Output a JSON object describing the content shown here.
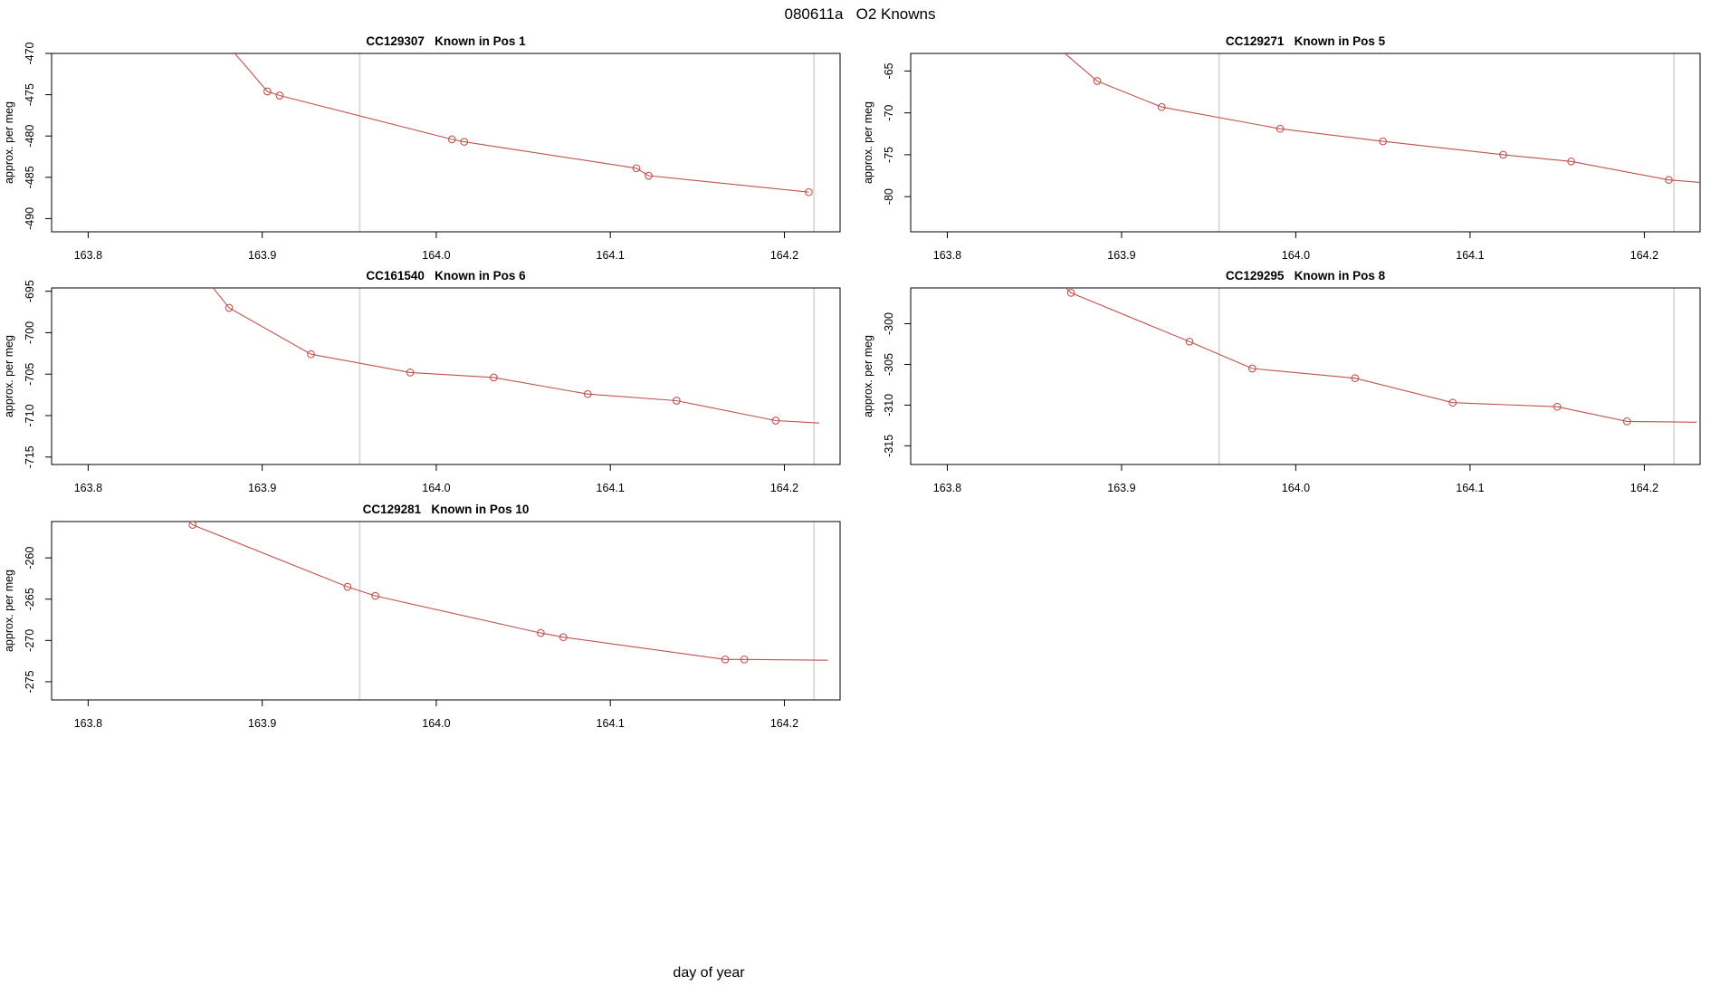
{
  "page": {
    "main_title": "080611a   O2 Knowns",
    "shared_xlabel": "day of year"
  },
  "colors": {
    "series": "#c0524c",
    "vline": "#dcdcdc",
    "axis": "#000000",
    "background": "#ffffff"
  },
  "chart_data": [
    {
      "type": "line",
      "id": "CC129307",
      "title": "CC129307   Known in Pos 1",
      "known_position": 1,
      "ylabel": "approx. per meg",
      "grid": {
        "row": 0,
        "col": 0
      },
      "xlim": [
        163.779,
        164.232
      ],
      "ylim": [
        -491.6,
        -470.0
      ],
      "xticks": [
        163.8,
        163.9,
        164.0,
        164.1,
        164.2
      ],
      "yticks": [
        -470,
        -475,
        -480,
        -485,
        -490
      ],
      "vlines": [
        163.956,
        164.217
      ],
      "line": [
        [
          163.868,
          -466.0
        ],
        [
          163.903,
          -474.6
        ],
        [
          163.91,
          -475.1
        ],
        [
          164.009,
          -480.4
        ],
        [
          164.016,
          -480.7
        ],
        [
          164.115,
          -483.9
        ],
        [
          164.122,
          -484.8
        ],
        [
          164.214,
          -486.8
        ]
      ],
      "markers": [
        [
          163.903,
          -474.6
        ],
        [
          163.91,
          -475.1
        ],
        [
          164.009,
          -480.4
        ],
        [
          164.016,
          -480.7
        ],
        [
          164.115,
          -483.9
        ],
        [
          164.122,
          -484.8
        ],
        [
          164.214,
          -486.8
        ]
      ]
    },
    {
      "type": "line",
      "id": "CC129271",
      "title": "CC129271   Known in Pos 5",
      "known_position": 5,
      "ylabel": "approx. per meg",
      "grid": {
        "row": 0,
        "col": 1
      },
      "xlim": [
        163.779,
        164.232
      ],
      "ylim": [
        -84.2,
        -62.9
      ],
      "xticks": [
        163.8,
        163.9,
        164.0,
        164.1,
        164.2
      ],
      "yticks": [
        -65,
        -70,
        -75,
        -80
      ],
      "vlines": [
        163.956,
        164.217
      ],
      "line": [
        [
          163.84,
          -58.0
        ],
        [
          163.886,
          -66.2
        ],
        [
          163.923,
          -69.3
        ],
        [
          163.991,
          -71.9
        ],
        [
          164.05,
          -73.4
        ],
        [
          164.119,
          -75.0
        ],
        [
          164.158,
          -75.8
        ],
        [
          164.214,
          -78.0
        ],
        [
          164.232,
          -78.3
        ]
      ],
      "markers": [
        [
          163.886,
          -66.2
        ],
        [
          163.923,
          -69.3
        ],
        [
          163.991,
          -71.9
        ],
        [
          164.05,
          -73.4
        ],
        [
          164.119,
          -75.0
        ],
        [
          164.158,
          -75.8
        ],
        [
          164.214,
          -78.0
        ]
      ]
    },
    {
      "type": "line",
      "id": "CC161540",
      "title": "CC161540   Known in Pos 6",
      "known_position": 6,
      "ylabel": "approx. per meg",
      "grid": {
        "row": 1,
        "col": 0
      },
      "xlim": [
        163.779,
        164.232
      ],
      "ylim": [
        -715.9,
        -694.6
      ],
      "xticks": [
        163.8,
        163.9,
        164.0,
        164.1,
        164.2
      ],
      "yticks": [
        -695,
        -700,
        -705,
        -710,
        -715
      ],
      "vlines": [
        163.956,
        164.217
      ],
      "line": [
        [
          163.858,
          -691.0
        ],
        [
          163.881,
          -697.0
        ],
        [
          163.928,
          -702.6
        ],
        [
          163.985,
          -704.8
        ],
        [
          164.033,
          -705.4
        ],
        [
          164.087,
          -707.4
        ],
        [
          164.138,
          -708.2
        ],
        [
          164.195,
          -710.6
        ],
        [
          164.22,
          -710.9
        ]
      ],
      "markers": [
        [
          163.881,
          -697.0
        ],
        [
          163.928,
          -702.6
        ],
        [
          163.985,
          -704.8
        ],
        [
          164.033,
          -705.4
        ],
        [
          164.087,
          -707.4
        ],
        [
          164.138,
          -708.2
        ],
        [
          164.195,
          -710.6
        ]
      ]
    },
    {
      "type": "line",
      "id": "CC129295",
      "title": "CC129295   Known in Pos 8",
      "known_position": 8,
      "ylabel": "approx. per meg",
      "grid": {
        "row": 1,
        "col": 1
      },
      "xlim": [
        163.779,
        164.232
      ],
      "ylim": [
        -317.3,
        -295.6
      ],
      "xticks": [
        163.8,
        163.9,
        164.0,
        164.1,
        164.2
      ],
      "yticks": [
        -300,
        -305,
        -310,
        -315
      ],
      "vlines": [
        163.956,
        164.217
      ],
      "line": [
        [
          163.864,
          -294.8
        ],
        [
          163.871,
          -296.2
        ],
        [
          163.939,
          -302.2
        ],
        [
          163.975,
          -305.5
        ],
        [
          164.034,
          -306.7
        ],
        [
          164.09,
          -309.7
        ],
        [
          164.15,
          -310.2
        ],
        [
          164.19,
          -312.0
        ],
        [
          164.23,
          -312.1
        ]
      ],
      "markers": [
        [
          163.871,
          -296.2
        ],
        [
          163.939,
          -302.2
        ],
        [
          163.975,
          -305.5
        ],
        [
          164.034,
          -306.7
        ],
        [
          164.09,
          -309.7
        ],
        [
          164.15,
          -310.2
        ],
        [
          164.19,
          -312.0
        ]
      ]
    },
    {
      "type": "line",
      "id": "CC129281",
      "title": "CC129281   Known in Pos 10",
      "known_position": 10,
      "ylabel": "approx. per meg",
      "grid": {
        "row": 2,
        "col": 0
      },
      "xlim": [
        163.779,
        164.232
      ],
      "ylim": [
        -277.2,
        -255.6
      ],
      "xticks": [
        163.8,
        163.9,
        164.0,
        164.1,
        164.2
      ],
      "yticks": [
        -260,
        -265,
        -270,
        -275
      ],
      "vlines": [
        163.956,
        164.217
      ],
      "line": [
        [
          163.853,
          -254.6
        ],
        [
          163.86,
          -256.0
        ],
        [
          163.949,
          -263.5
        ],
        [
          163.965,
          -264.6
        ],
        [
          164.06,
          -269.1
        ],
        [
          164.073,
          -269.6
        ],
        [
          164.166,
          -272.3
        ],
        [
          164.177,
          -272.3
        ],
        [
          164.225,
          -272.4
        ]
      ],
      "markers": [
        [
          163.86,
          -256.0
        ],
        [
          163.949,
          -263.5
        ],
        [
          163.965,
          -264.6
        ],
        [
          164.06,
          -269.1
        ],
        [
          164.073,
          -269.6
        ],
        [
          164.166,
          -272.3
        ],
        [
          164.177,
          -272.3
        ]
      ]
    }
  ]
}
